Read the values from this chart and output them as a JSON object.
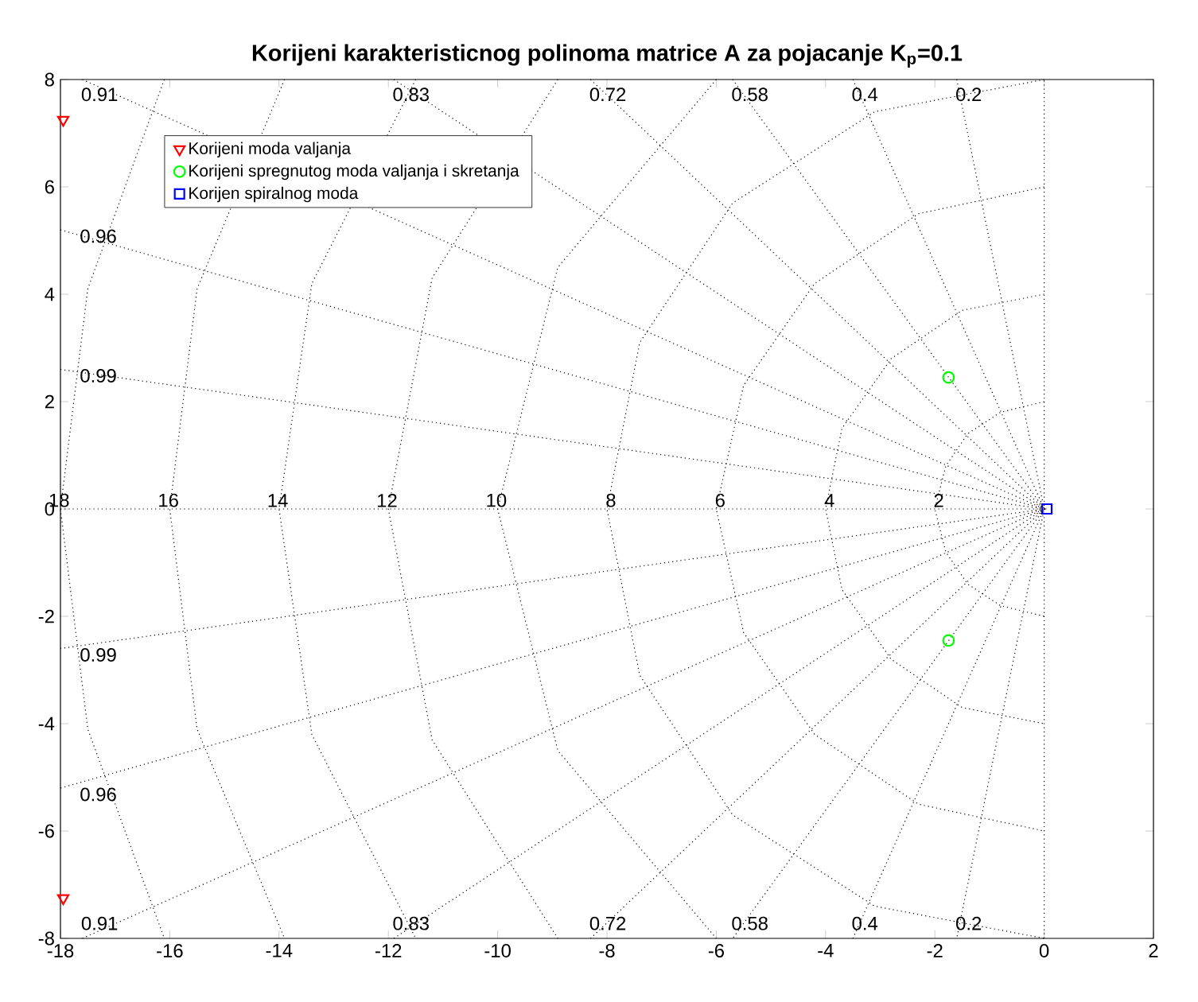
{
  "chart_data": {
    "type": "scatter",
    "title": "Korijeni karakteristicnog polinoma matrice A za pojacanje K$_{p}$=0.1",
    "xlim": [
      -18,
      2
    ],
    "ylim": [
      -8,
      8
    ],
    "xticks": [
      -18,
      -16,
      -14,
      -12,
      -10,
      -8,
      -6,
      -4,
      -2,
      0,
      2
    ],
    "yticks": [
      -8,
      -6,
      -4,
      -2,
      0,
      2,
      4,
      6,
      8
    ],
    "legend": "top left",
    "series": [
      {
        "name": "Korijeni moda valjanja",
        "color": "#ff0000",
        "marker": "triangle",
        "x": [
          -17.95,
          -17.95
        ],
        "values": [
          7.25,
          -7.25
        ]
      },
      {
        "name": "Korijeni spregnutog moda valjanja i skretanja",
        "color": "#00ff00",
        "marker": "circle",
        "x": [
          -1.75,
          -1.75
        ],
        "values": [
          2.45,
          -2.45
        ]
      },
      {
        "name": "Korijen spiralnog moda",
        "color": "#0000ff",
        "marker": "square",
        "x": [
          0.05
        ],
        "values": [
          0
        ]
      },
      {
        "type": "line",
        "color": "#000000",
        "marker": "none",
        "line_style": "dotted",
        "x": [
          -18,
          0
        ],
        "values": [
          0,
          0
        ]
      },
      {
        "name": "0.2",
        "type": "line",
        "color": "#000000",
        "marker": "none",
        "line_style": "dotted",
        "x": [
          -1.6,
          0,
          -1.6
        ],
        "values": [
          8,
          0,
          -8
        ]
      },
      {
        "name": "0.4",
        "type": "line",
        "color": "#000000",
        "marker": "none",
        "line_style": "dotted",
        "x": [
          -3.5,
          0,
          -3.5
        ],
        "values": [
          8,
          0,
          -8
        ]
      },
      {
        "name": "0.58",
        "type": "line",
        "color": "#000000",
        "marker": "none",
        "line_style": "dotted",
        "x": [
          -5.7,
          0,
          -5.7
        ],
        "values": [
          8,
          0,
          -8
        ]
      },
      {
        "name": "0.72",
        "type": "line",
        "color": "#000000",
        "marker": "none",
        "line_style": "dotted",
        "x": [
          -8.3,
          0,
          -8.3
        ],
        "values": [
          8,
          0,
          -8
        ]
      },
      {
        "name": "0.83",
        "type": "line",
        "color": "#000000",
        "marker": "none",
        "line_style": "dotted",
        "x": [
          -11.9,
          0,
          -11.9
        ],
        "values": [
          8,
          0,
          -8
        ]
      },
      {
        "name": "0.91",
        "type": "line",
        "color": "#000000",
        "marker": "none",
        "line_style": "dotted",
        "x": [
          -17.6,
          0,
          -17.6
        ],
        "values": [
          8,
          0,
          -8
        ]
      },
      {
        "name": "0.96",
        "type": "line",
        "color": "#000000",
        "marker": "none",
        "line_style": "dotted",
        "x": [
          -18,
          0,
          -18
        ],
        "values": [
          5.2,
          0,
          -5.2
        ]
      },
      {
        "name": "0.99",
        "type": "line",
        "color": "#000000",
        "marker": "none",
        "line_style": "dotted",
        "x": [
          -18,
          0,
          -18
        ],
        "values": [
          2.6,
          0,
          -2.6
        ]
      },
      {
        "name": "2",
        "type": "line",
        "color": "#000000",
        "marker": "none",
        "line_style": "dotted",
        "x": [
          0,
          -0.8,
          -1.4,
          -1.8,
          -2,
          -1.8,
          -1.4,
          -0.8,
          0
        ],
        "values": [
          2,
          1.8,
          1.4,
          0.8,
          0,
          -0.8,
          -1.4,
          -1.8,
          -2
        ]
      },
      {
        "name": "4",
        "type": "line",
        "color": "#000000",
        "marker": "none",
        "line_style": "dotted",
        "x": [
          0,
          -1.5,
          -2.8,
          -3.7,
          -4,
          -3.7,
          -2.8,
          -1.5,
          0
        ],
        "values": [
          4,
          3.7,
          2.8,
          1.5,
          0,
          -1.5,
          -2.8,
          -3.7,
          -4
        ]
      },
      {
        "name": "6",
        "type": "line",
        "color": "#000000",
        "marker": "none",
        "line_style": "dotted",
        "x": [
          0,
          -2.3,
          -4.2,
          -5.5,
          -6,
          -5.5,
          -4.2,
          -2.3,
          0
        ],
        "values": [
          6,
          5.5,
          4.2,
          2.3,
          0,
          -2.3,
          -4.2,
          -5.5,
          -6
        ]
      },
      {
        "name": "8",
        "type": "line",
        "color": "#000000",
        "marker": "none",
        "line_style": "dotted",
        "x": [
          0,
          -3.1,
          -5.7,
          -7.4,
          -8,
          -7.4,
          -5.7,
          -3.1,
          0
        ],
        "values": [
          8,
          7.4,
          5.7,
          3.1,
          0,
          -3.1,
          -5.7,
          -7.4,
          -8
        ]
      },
      {
        "name": "10",
        "type": "line",
        "color": "#000000",
        "marker": "none",
        "line_style": "dotted",
        "x": [
          -6,
          -8.9,
          -10,
          -8.9,
          -6
        ],
        "values": [
          8,
          4.5,
          0,
          -4.5,
          -8
        ]
      },
      {
        "name": "12",
        "type": "line",
        "color": "#000000",
        "marker": "none",
        "line_style": "dotted",
        "x": [
          -8.9,
          -11.2,
          -12,
          -11.2,
          -8.9
        ],
        "values": [
          8,
          4.3,
          0,
          -4.3,
          -8
        ]
      },
      {
        "name": "14",
        "type": "line",
        "color": "#000000",
        "marker": "none",
        "line_style": "dotted",
        "x": [
          -11.5,
          -13.4,
          -14,
          -13.4,
          -11.5
        ],
        "values": [
          8,
          4.2,
          0,
          -4.2,
          -8
        ]
      },
      {
        "name": "16",
        "type": "line",
        "color": "#000000",
        "marker": "none",
        "line_style": "dotted",
        "x": [
          -13.9,
          -15.5,
          -16,
          -15.5,
          -13.9
        ],
        "values": [
          8,
          4.1,
          0,
          -4.1,
          -8
        ]
      },
      {
        "name": "18",
        "type": "line",
        "color": "#000000",
        "marker": "none",
        "line_style": "dotted",
        "x": [
          -16.1,
          -17.5,
          -18,
          -17.5,
          -16.1
        ],
        "values": [
          8,
          4.1,
          0,
          -4.1,
          -8
        ]
      }
    ],
    "ref_lines": [
      {
        "axis": "x",
        "value": 0,
        "line_style": "dotted",
        "color": "#000000"
      }
    ]
  }
}
